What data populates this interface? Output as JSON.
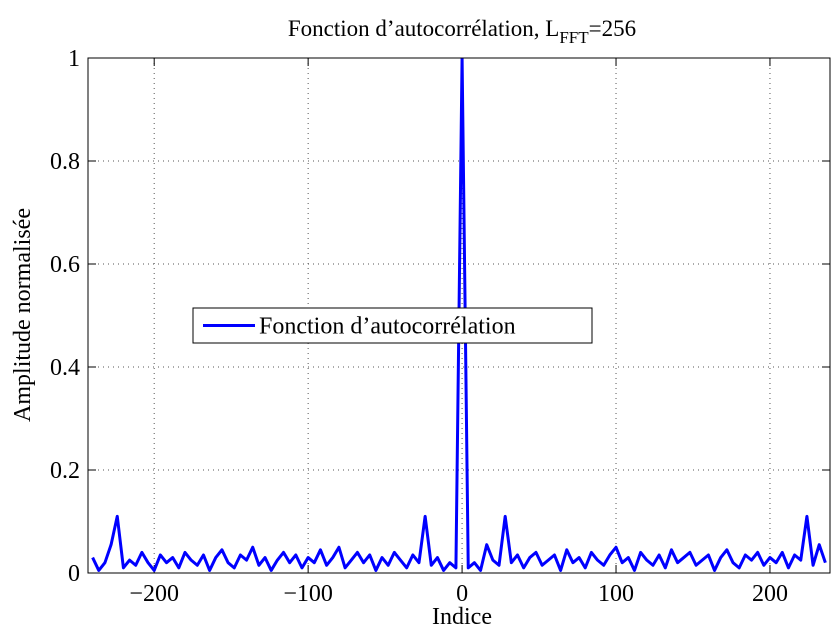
{
  "chart_data": {
    "type": "line",
    "title": "Fonction d’autocorrélation, L",
    "title_subscript": "FFT",
    "title_suffix": "=256",
    "x_label": "Indice",
    "y_label": "Amplitude normalisée",
    "x": [
      -240,
      -236,
      -232,
      -228,
      -224,
      -220,
      -216,
      -212,
      -208,
      -204,
      -200,
      -196,
      -192,
      -188,
      -184,
      -180,
      -176,
      -172,
      -168,
      -164,
      -160,
      -156,
      -152,
      -148,
      -144,
      -140,
      -136,
      -132,
      -128,
      -124,
      -120,
      -116,
      -112,
      -108,
      -104,
      -100,
      -96,
      -92,
      -88,
      -84,
      -80,
      -76,
      -72,
      -68,
      -64,
      -60,
      -56,
      -52,
      -48,
      -44,
      -40,
      -36,
      -32,
      -28,
      -24,
      -20,
      -16,
      -12,
      -8,
      -4,
      0,
      4,
      8,
      12,
      16,
      20,
      24,
      28,
      32,
      36,
      40,
      44,
      48,
      52,
      56,
      60,
      64,
      68,
      72,
      76,
      80,
      84,
      88,
      92,
      96,
      100,
      104,
      108,
      112,
      116,
      120,
      124,
      128,
      132,
      136,
      140,
      144,
      148,
      152,
      156,
      160,
      164,
      168,
      172,
      176,
      180,
      184,
      188,
      192,
      196,
      200,
      204,
      208,
      212,
      216,
      220,
      224,
      228,
      232,
      236
    ],
    "series": [
      {
        "name": "Fonction d’autocorrélation",
        "color": "#0000ff",
        "values": [
          0.03,
          0.005,
          0.02,
          0.055,
          0.11,
          0.01,
          0.025,
          0.015,
          0.04,
          0.02,
          0.005,
          0.035,
          0.02,
          0.03,
          0.01,
          0.04,
          0.025,
          0.015,
          0.035,
          0.005,
          0.03,
          0.045,
          0.02,
          0.01,
          0.035,
          0.025,
          0.05,
          0.015,
          0.03,
          0.005,
          0.025,
          0.04,
          0.02,
          0.035,
          0.01,
          0.03,
          0.02,
          0.045,
          0.015,
          0.03,
          0.05,
          0.01,
          0.025,
          0.04,
          0.02,
          0.035,
          0.005,
          0.03,
          0.015,
          0.04,
          0.025,
          0.01,
          0.035,
          0.02,
          0.11,
          0.015,
          0.03,
          0.005,
          0.02,
          0.01,
          1,
          0.01,
          0.02,
          0.005,
          0.055,
          0.025,
          0.015,
          0.11,
          0.02,
          0.035,
          0.01,
          0.03,
          0.04,
          0.015,
          0.025,
          0.035,
          0.005,
          0.045,
          0.02,
          0.03,
          0.01,
          0.04,
          0.025,
          0.015,
          0.035,
          0.05,
          0.02,
          0.03,
          0.005,
          0.04,
          0.025,
          0.015,
          0.035,
          0.01,
          0.045,
          0.02,
          0.03,
          0.04,
          0.015,
          0.025,
          0.035,
          0.005,
          0.03,
          0.045,
          0.02,
          0.01,
          0.035,
          0.025,
          0.04,
          0.015,
          0.03,
          0.02,
          0.04,
          0.01,
          0.035,
          0.025,
          0.11,
          0.015,
          0.055,
          0.02
        ]
      }
    ],
    "xlim": [
      -243,
      239
    ],
    "xticks": [
      {
        "value": -200,
        "label": "−200"
      },
      {
        "value": -100,
        "label": "−100"
      },
      0,
      100,
      200
    ],
    "ylim": [
      0,
      1
    ],
    "yticks": [
      0,
      0.2,
      0.4,
      0.6,
      0.8,
      1
    ],
    "grid": true,
    "legend": "center-left"
  }
}
